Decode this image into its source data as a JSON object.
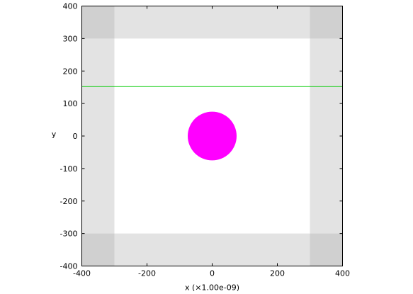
{
  "chart_data": {
    "type": "scatter",
    "title": "",
    "xlabel": "x (×1.00e-09)",
    "ylabel": "y",
    "xlim": [
      -400,
      400
    ],
    "ylim": [
      -400,
      400
    ],
    "x_ticks": [
      -400,
      -200,
      0,
      200,
      400
    ],
    "y_ticks": [
      -400,
      -300,
      -200,
      -100,
      0,
      100,
      200,
      300,
      400
    ],
    "grid": false,
    "pml_regions": {
      "color": "#e3e3e3",
      "corner_color": "#d0d0d0",
      "x_inner": [
        -300,
        300
      ],
      "y_inner": [
        -300,
        300
      ]
    },
    "shapes": [
      {
        "kind": "circle",
        "cx": 0,
        "cy": 0,
        "r": 75,
        "color": "#ff00ff"
      }
    ],
    "lines": [
      {
        "kind": "horizontal",
        "y": 152,
        "x_from": -400,
        "x_to": 400,
        "color": "#00cc00"
      }
    ]
  }
}
